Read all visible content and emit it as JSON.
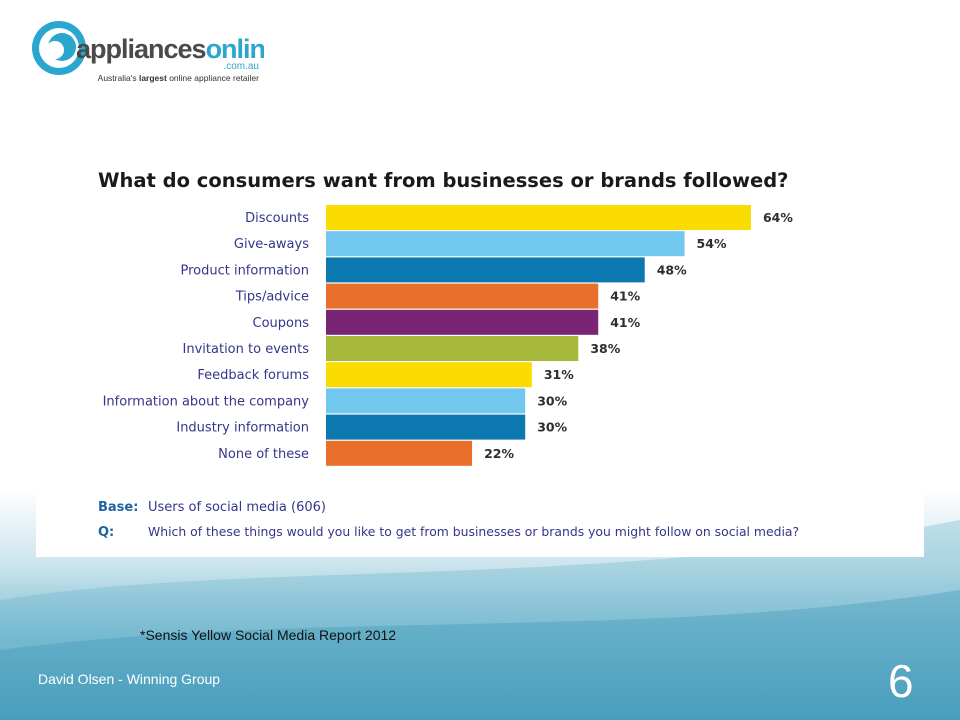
{
  "logo": {
    "brand_main": "appliances",
    "brand_accent": "online",
    "domain": ".com.au",
    "tagline_pre": "Australia's ",
    "tagline_bold": "largest",
    "tagline_post": " online appliance retailer"
  },
  "chart_data": {
    "type": "bar",
    "orientation": "horizontal",
    "title": "What do consumers want from businesses or brands followed?",
    "categories": [
      "Discounts",
      "Give-aways",
      "Product information",
      "Tips/advice",
      "Coupons",
      "Invitation to events",
      "Feedback forums",
      "Information about the company",
      "Industry information",
      "None of these"
    ],
    "values": [
      64,
      54,
      48,
      41,
      41,
      38,
      31,
      30,
      30,
      22
    ],
    "value_labels": [
      "64%",
      "54%",
      "48%",
      "41%",
      "41%",
      "38%",
      "31%",
      "30%",
      "30%",
      "22%"
    ],
    "colors": [
      "#fbdc00",
      "#72c7ee",
      "#0b78b0",
      "#e8702a",
      "#7a2476",
      "#a7b93b",
      "#fbdc00",
      "#72c7ee",
      "#0b78b0",
      "#e8702a"
    ],
    "xlim": [
      0,
      100
    ],
    "grid": false,
    "legend": "none",
    "base_label": "Base:",
    "base_text": "Users of social media (606)",
    "q_label": "Q:",
    "q_text": "Which of these things would you like to get from businesses or brands you might follow on social media?",
    "label_color": "#35368a",
    "base_color": "#1e64a0"
  },
  "footnote": "*Sensis Yellow Social Media Report 2012",
  "author": "David Olsen - Winning Group",
  "page_number": "6"
}
